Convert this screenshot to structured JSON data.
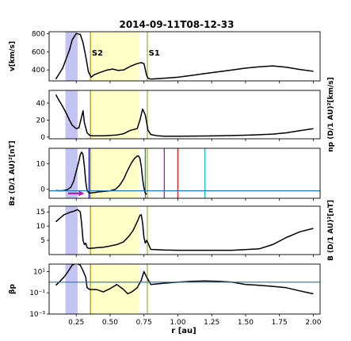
{
  "chart_data": {
    "type": "line",
    "title": "2014-09-11T08-12-33",
    "xlabel": "r [au]",
    "xlim": [
      0.05,
      2.05
    ],
    "x_ticks": [
      0.25,
      0.5,
      0.75,
      1.0,
      1.25,
      1.5,
      1.75,
      2.0
    ],
    "x_tick_labels": [
      "0.25",
      "0.50",
      "0.75",
      "1.00",
      "1.25",
      "1.50",
      "1.75",
      "2.00"
    ],
    "shaded_regions": [
      {
        "x": [
          0.17,
          0.26
        ],
        "color": "#c4c4f4"
      },
      {
        "x": [
          0.355,
          0.71
        ],
        "color": "#ffffc8"
      }
    ],
    "vertical_lines": [
      {
        "x": 0.355,
        "color": "#b8a520"
      },
      {
        "x": 0.775,
        "color": "#b8b840"
      }
    ],
    "annotations": [
      {
        "text": "S2",
        "x": 0.365,
        "y": 560,
        "panel": 0
      },
      {
        "text": "S1",
        "x": 0.785,
        "y": 560,
        "panel": 0
      }
    ],
    "panels": [
      {
        "ylabel": "v[km/s]",
        "ylabel_side": "left",
        "ylim": [
          280,
          820
        ],
        "yscale": "linear",
        "y_ticks": [
          400,
          600,
          800
        ],
        "y_tick_labels": [
          "400",
          "600",
          "800"
        ],
        "series": [
          {
            "color": "#000000",
            "x": [
              0.1,
              0.15,
              0.2,
              0.22,
              0.25,
              0.28,
              0.3,
              0.32,
              0.34,
              0.36,
              0.38,
              0.42,
              0.48,
              0.52,
              0.56,
              0.6,
              0.65,
              0.7,
              0.73,
              0.75,
              0.77,
              0.78,
              0.8,
              0.9,
              1.0,
              1.1,
              1.2,
              1.3,
              1.4,
              1.5,
              1.6,
              1.7,
              1.8,
              1.9,
              2.0
            ],
            "y": [
              300,
              420,
              620,
              730,
              800,
              790,
              700,
              550,
              380,
              320,
              345,
              370,
              400,
              410,
              395,
              400,
              440,
              470,
              480,
              470,
              340,
              310,
              300,
              310,
              320,
              340,
              360,
              380,
              400,
              420,
              435,
              445,
              430,
              405,
              385
            ]
          }
        ]
      },
      {
        "ylabel": "np (D/1 AU)²[km/s]",
        "ylabel_side": "right",
        "ylim": [
          -2,
          55
        ],
        "yscale": "linear",
        "y_ticks": [
          0,
          20,
          40
        ],
        "y_tick_labels": [
          "0",
          "20",
          "40"
        ],
        "series": [
          {
            "color": "#000000",
            "x": [
              0.1,
              0.12,
              0.15,
              0.18,
              0.2,
              0.22,
              0.25,
              0.27,
              0.29,
              0.3,
              0.31,
              0.33,
              0.35,
              0.37,
              0.4,
              0.45,
              0.5,
              0.55,
              0.6,
              0.65,
              0.7,
              0.72,
              0.74,
              0.76,
              0.78,
              0.8,
              0.85,
              0.9,
              1.0,
              1.1,
              1.2,
              1.3,
              1.4,
              1.5,
              1.6,
              1.7,
              1.8,
              1.9,
              2.0
            ],
            "y": [
              50,
              44,
              36,
              27,
              20,
              14,
              10,
              11,
              24,
              31,
              17,
              5,
              2,
              1.5,
              1.5,
              1.5,
              2,
              2.5,
              4,
              8,
              10,
              20,
              33,
              26,
              8,
              3,
              1.5,
              1,
              1,
              1.2,
              1.3,
              1.5,
              1.8,
              2.2,
              2.8,
              3.5,
              5,
              7.5,
              10
            ]
          }
        ]
      },
      {
        "ylabel": "Bz (D/1 AU)²[nT]",
        "ylabel_side": "left",
        "ylim": [
          -3.5,
          16
        ],
        "yscale": "linear",
        "y_ticks": [
          0,
          10
        ],
        "y_tick_labels": [
          "0",
          "10"
        ],
        "series": [
          {
            "color": "#000000",
            "x": [
              0.1,
              0.13,
              0.16,
              0.19,
              0.21,
              0.23,
              0.25,
              0.27,
              0.28,
              0.29,
              0.3,
              0.31,
              0.32,
              0.33,
              0.34,
              0.35,
              0.38,
              0.42,
              0.46,
              0.5,
              0.54,
              0.57,
              0.6,
              0.63,
              0.66,
              0.68,
              0.7,
              0.71,
              0.72,
              0.73,
              0.74,
              0.75,
              0.76,
              0.77
            ],
            "y": [
              -0.5,
              -0.6,
              -0.5,
              0,
              0.8,
              3,
              7,
              11,
              13.5,
              14.5,
              13.5,
              9,
              3,
              -0.5,
              -1.2,
              -1.5,
              -1.3,
              -1,
              -0.8,
              -0.6,
              0,
              1.5,
              4,
              7.5,
              10.5,
              12,
              13,
              13,
              12,
              9,
              4,
              0.5,
              -1.5,
              -2
            ]
          },
          {
            "color": "#1f77b4",
            "x": [
              0.05,
              2.05
            ],
            "y": [
              -0.6,
              -0.6
            ]
          }
        ],
        "vlines": [
          {
            "x": 0.345,
            "color": "#1a1ab0"
          },
          {
            "x": 0.76,
            "color": "#2ca02c"
          },
          {
            "x": 0.9,
            "color": "#b020b0"
          },
          {
            "x": 1.0,
            "color": "#d62728"
          },
          {
            "x": 1.2,
            "color": "#17becf"
          }
        ],
        "arrow": {
          "from": [
            0.19,
            -1.6
          ],
          "to": [
            0.31,
            -1.6
          ],
          "color": "#b020b0"
        }
      },
      {
        "ylabel": "B (D/1 AU)²[nT]",
        "ylabel_side": "right",
        "ylim": [
          0,
          17
        ],
        "yscale": "linear",
        "y_ticks": [
          5,
          10,
          15
        ],
        "y_tick_labels": [
          "5",
          "10",
          "15"
        ],
        "series": [
          {
            "color": "#000000",
            "x": [
              0.1,
              0.13,
              0.16,
              0.2,
              0.23,
              0.26,
              0.28,
              0.29,
              0.3,
              0.31,
              0.32,
              0.33,
              0.34,
              0.36,
              0.4,
              0.45,
              0.5,
              0.55,
              0.6,
              0.64,
              0.67,
              0.7,
              0.72,
              0.73,
              0.74,
              0.75,
              0.76,
              0.77,
              0.78,
              0.8,
              0.9,
              1.0,
              1.2,
              1.4,
              1.6,
              1.7,
              1.8,
              1.9,
              2.0
            ],
            "y": [
              11.5,
              12.8,
              14,
              14.8,
              15.2,
              15.8,
              15,
              11,
              5,
              3.5,
              4,
              2.5,
              2.2,
              2.2,
              2.4,
              2.6,
              3,
              3.5,
              4.5,
              6.5,
              8.5,
              11.5,
              13.8,
              14,
              11,
              6,
              4,
              5,
              4,
              1.8,
              1.6,
              1.5,
              1.5,
              1.5,
              2,
              3.5,
              6,
              8,
              9.2
            ]
          }
        ]
      },
      {
        "ylabel": "βp",
        "ylabel_side": "left",
        "ylim": [
          0.001,
          50
        ],
        "yscale": "log",
        "y_ticks": [
          0.001,
          0.1,
          10
        ],
        "y_tick_labels": [
          "10⁻³",
          "10⁻¹",
          "10¹"
        ],
        "series": [
          {
            "color": "#000000",
            "x": [
              0.1,
              0.13,
              0.16,
              0.19,
              0.22,
              0.25,
              0.28,
              0.3,
              0.32,
              0.33,
              0.35,
              0.4,
              0.45,
              0.5,
              0.55,
              0.6,
              0.63,
              0.66,
              0.7,
              0.73,
              0.75,
              0.77,
              0.8,
              0.9,
              1.0,
              1.1,
              1.2,
              1.3,
              1.4,
              1.5,
              1.6,
              1.7,
              1.8,
              1.9,
              2.0
            ],
            "y": [
              0.5,
              1.2,
              3,
              10,
              40,
              60,
              40,
              12,
              3,
              0.3,
              0.2,
              0.2,
              0.12,
              0.25,
              0.6,
              0.2,
              0.08,
              0.12,
              0.3,
              1.5,
              10,
              3,
              0.6,
              0.8,
              1,
              1.2,
              1.3,
              1.2,
              1,
              0.6,
              0.5,
              0.4,
              0.3,
              0.15,
              0.08
            ]
          },
          {
            "color": "#1f77b4",
            "x": [
              0.05,
              2.05
            ],
            "y": [
              1,
              1
            ]
          }
        ]
      }
    ]
  }
}
